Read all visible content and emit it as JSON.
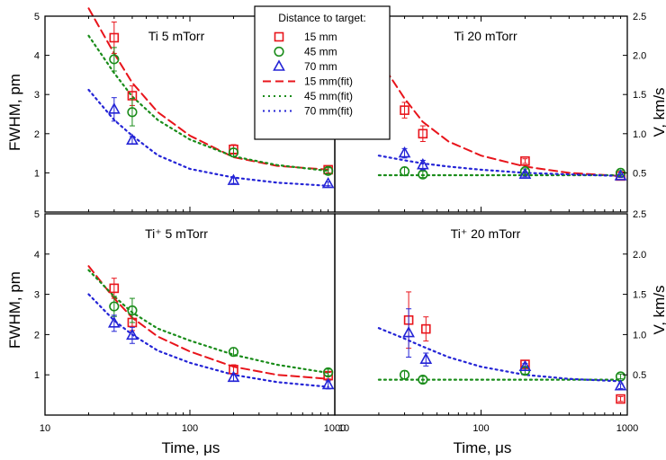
{
  "chart_data": [
    {
      "type": "scatter",
      "panel": "top-left",
      "title": "Ti  5 mTorr",
      "ylabel": "FWHM, pm",
      "xscale": "log",
      "xlim": [
        10,
        1000
      ],
      "ylim": [
        0,
        5
      ],
      "yticks": [
        1,
        2,
        3,
        4,
        5
      ],
      "series": [
        {
          "name": "15 mm",
          "marker": "square",
          "color": "#e8141b",
          "x": [
            30,
            40,
            200,
            900
          ],
          "y": [
            4.45,
            2.97,
            1.6,
            1.08
          ],
          "err": [
            0.4,
            0.25,
            0.12,
            0.08
          ]
        },
        {
          "name": "45 mm",
          "marker": "circle",
          "color": "#1a8c1a",
          "x": [
            30,
            40,
            200,
            900
          ],
          "y": [
            3.9,
            2.55,
            1.52,
            1.05
          ],
          "err": [
            0.3,
            0.35,
            0.1,
            0.08
          ]
        },
        {
          "name": "70 mm",
          "marker": "triangle",
          "color": "#2424d6",
          "x": [
            30,
            40,
            200,
            900
          ],
          "y": [
            2.62,
            1.83,
            0.8,
            0.72
          ],
          "err": [
            0.3,
            0.1,
            0.07,
            0.05
          ]
        }
      ],
      "fits": [
        {
          "name": "15 mm(fit)",
          "style": "dashed",
          "color": "#e8141b",
          "x": [
            20,
            30,
            40,
            60,
            100,
            200,
            400,
            900
          ],
          "y": [
            5.2,
            4.05,
            3.3,
            2.55,
            1.95,
            1.4,
            1.18,
            1.08
          ]
        },
        {
          "name": "45 mm(fit)",
          "style": "dotted",
          "color": "#1a8c1a",
          "x": [
            20,
            30,
            40,
            60,
            100,
            200,
            400,
            900
          ],
          "y": [
            4.5,
            3.55,
            2.95,
            2.35,
            1.85,
            1.42,
            1.2,
            1.05
          ]
        },
        {
          "name": "70 mm(fit)",
          "style": "dotted",
          "color": "#2424d6",
          "x": [
            20,
            30,
            40,
            60,
            100,
            200,
            400,
            900
          ],
          "y": [
            3.12,
            2.35,
            1.95,
            1.45,
            1.1,
            0.88,
            0.75,
            0.67
          ]
        }
      ]
    },
    {
      "type": "scatter",
      "panel": "top-right",
      "title": "Ti  20 mTorr",
      "ylabel": "V, km/s",
      "xscale": "log",
      "xlim": [
        10,
        1000
      ],
      "ylim": [
        0,
        2.5
      ],
      "yticks": [
        0.5,
        1.0,
        1.5,
        2.0,
        2.5
      ],
      "series": [
        {
          "name": "15 mm",
          "marker": "square",
          "color": "#e8141b",
          "x": [
            30,
            40,
            200,
            900
          ],
          "y": [
            1.3,
            1.0,
            0.65,
            0.46
          ],
          "err": [
            0.1,
            0.1,
            0.03,
            0.02
          ]
        },
        {
          "name": "45 mm",
          "marker": "circle",
          "color": "#1a8c1a",
          "x": [
            30,
            40,
            200,
            900
          ],
          "y": [
            0.52,
            0.48,
            0.52,
            0.5
          ],
          "err": [
            0.05,
            0.04,
            0.03,
            0.03
          ]
        },
        {
          "name": "70 mm",
          "marker": "triangle",
          "color": "#2424d6",
          "x": [
            30,
            40,
            200,
            900
          ],
          "y": [
            0.75,
            0.6,
            0.48,
            0.46
          ],
          "err": [
            0.06,
            0.06,
            0.03,
            0.02
          ]
        }
      ],
      "fits": [
        {
          "name": "15 mm(fit)",
          "style": "dashed",
          "color": "#e8141b",
          "x": [
            20,
            30,
            40,
            60,
            100,
            200,
            400,
            900
          ],
          "y": [
            1.95,
            1.45,
            1.15,
            0.9,
            0.72,
            0.58,
            0.5,
            0.46
          ]
        },
        {
          "name": "45 mm(fit)",
          "style": "dotted",
          "color": "#1a8c1a",
          "x": [
            20,
            900
          ],
          "y": [
            0.47,
            0.47
          ]
        },
        {
          "name": "70 mm(fit)",
          "style": "dotted",
          "color": "#2424d6",
          "x": [
            20,
            30,
            40,
            60,
            100,
            200,
            400,
            900
          ],
          "y": [
            0.72,
            0.66,
            0.62,
            0.58,
            0.54,
            0.5,
            0.48,
            0.46
          ]
        }
      ]
    },
    {
      "type": "scatter",
      "panel": "bottom-left",
      "title": "Ti⁺ 5 mTorr",
      "xlabel": "Time, μs",
      "ylabel": "FWHM, pm",
      "xscale": "log",
      "xlim": [
        10,
        1000
      ],
      "ylim": [
        0,
        5
      ],
      "xticks": [
        10,
        100,
        1000
      ],
      "yticks": [
        1,
        2,
        3,
        4,
        5
      ],
      "series": [
        {
          "name": "15 mm",
          "marker": "square",
          "color": "#e8141b",
          "x": [
            30,
            40,
            200,
            900
          ],
          "y": [
            3.15,
            2.3,
            1.13,
            0.98
          ],
          "err": [
            0.25,
            0.2,
            0.12,
            0.08
          ]
        },
        {
          "name": "45 mm",
          "marker": "circle",
          "color": "#1a8c1a",
          "x": [
            30,
            40,
            200,
            900
          ],
          "y": [
            2.7,
            2.6,
            1.57,
            1.06
          ],
          "err": [
            0.25,
            0.3,
            0.1,
            0.08
          ]
        },
        {
          "name": "70 mm",
          "marker": "triangle",
          "color": "#2424d6",
          "x": [
            30,
            40,
            200,
            900
          ],
          "y": [
            2.28,
            1.98,
            0.93,
            0.75
          ],
          "err": [
            0.2,
            0.2,
            0.08,
            0.1
          ]
        }
      ],
      "fits": [
        {
          "name": "15 mm(fit)",
          "style": "dashed",
          "color": "#e8141b",
          "x": [
            20,
            30,
            40,
            60,
            100,
            200,
            400,
            900
          ],
          "y": [
            3.7,
            2.9,
            2.42,
            1.95,
            1.58,
            1.2,
            1.0,
            0.9
          ]
        },
        {
          "name": "45 mm(fit)",
          "style": "dotted",
          "color": "#1a8c1a",
          "x": [
            20,
            30,
            40,
            60,
            100,
            200,
            400,
            900
          ],
          "y": [
            3.6,
            2.95,
            2.55,
            2.15,
            1.85,
            1.5,
            1.25,
            1.05
          ]
        },
        {
          "name": "70 mm(fit)",
          "style": "dotted",
          "color": "#2424d6",
          "x": [
            20,
            30,
            40,
            60,
            100,
            200,
            400,
            900
          ],
          "y": [
            3.0,
            2.35,
            2.0,
            1.6,
            1.3,
            1.0,
            0.82,
            0.7
          ]
        }
      ]
    },
    {
      "type": "scatter",
      "panel": "bottom-right",
      "title": "Ti⁺ 20 mTorr",
      "xlabel": "Time, μs",
      "ylabel": "V, km/s",
      "xscale": "log",
      "xlim": [
        10,
        1000
      ],
      "ylim": [
        0,
        2.5
      ],
      "xticks": [
        10,
        100,
        1000
      ],
      "yticks": [
        0.5,
        1.0,
        1.5,
        2.0,
        2.5
      ],
      "series": [
        {
          "name": "15 mm",
          "marker": "square",
          "color": "#e8141b",
          "x": [
            32,
            42,
            200,
            900
          ],
          "y": [
            1.18,
            1.07,
            0.63,
            0.2
          ],
          "err": [
            0.35,
            0.15,
            0.05,
            0.03
          ]
        },
        {
          "name": "45 mm",
          "marker": "circle",
          "color": "#1a8c1a",
          "x": [
            30,
            40,
            200,
            900
          ],
          "y": [
            0.5,
            0.44,
            0.55,
            0.48
          ],
          "err": [
            0.05,
            0.04,
            0.04,
            0.03
          ]
        },
        {
          "name": "70 mm",
          "marker": "triangle",
          "color": "#2424d6",
          "x": [
            32,
            42,
            200,
            900
          ],
          "y": [
            1.02,
            0.69,
            0.6,
            0.36
          ],
          "err": [
            0.3,
            0.08,
            0.04,
            0.03
          ]
        }
      ],
      "fits": [
        {
          "name": "45 mm(fit)",
          "style": "dotted",
          "color": "#1a8c1a",
          "x": [
            20,
            900
          ],
          "y": [
            0.44,
            0.44
          ]
        },
        {
          "name": "70 mm(fit)",
          "style": "dotted",
          "color": "#2424d6",
          "x": [
            20,
            30,
            40,
            60,
            100,
            200,
            400,
            900
          ],
          "y": [
            1.08,
            0.95,
            0.85,
            0.72,
            0.6,
            0.5,
            0.45,
            0.42
          ]
        }
      ]
    }
  ],
  "legend": {
    "title": "Distance to target:",
    "placement": "top-center",
    "items": [
      {
        "label": "15 mm",
        "marker": "square",
        "color": "#e8141b"
      },
      {
        "label": "45 mm",
        "marker": "circle",
        "color": "#1a8c1a"
      },
      {
        "label": "70 mm",
        "marker": "triangle",
        "color": "#2424d6"
      },
      {
        "label": "15 mm(fit)",
        "style": "dashed",
        "color": "#e8141b"
      },
      {
        "label": "45 mm(fit)",
        "style": "dotted",
        "color": "#1a8c1a"
      },
      {
        "label": "70 mm(fit)",
        "style": "dotted",
        "color": "#2424d6"
      }
    ]
  },
  "axes_text": {
    "ylabel_left": "FWHM, pm",
    "ylabel_right": "V, km/s",
    "xlabel": "Time, μs",
    "x_tick_labels": [
      "10",
      "100",
      "1000"
    ],
    "left_tick_labels": [
      "1",
      "2",
      "3",
      "4",
      "5"
    ],
    "right_tick_labels": [
      "0.5",
      "1.0",
      "1.5",
      "2.0",
      "2.5"
    ]
  }
}
